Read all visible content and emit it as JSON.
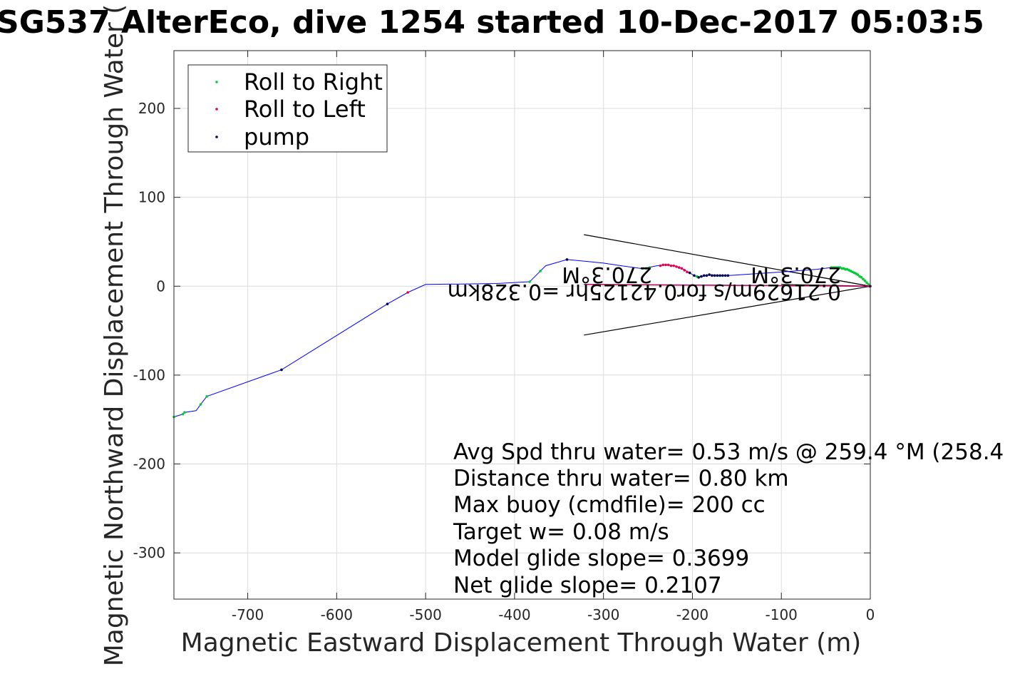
{
  "chart_data": {
    "type": "scatter",
    "title": "SG537 AlterEco, dive 1254 started 10-Dec-2017 05:03:5",
    "xlabel": "Magnetic Eastward Displacement Through Water (m)",
    "ylabel": "Magnetic Northward Displacement Through Water (",
    "xlim": [
      -783,
      0
    ],
    "ylim": [
      -352,
      265
    ],
    "x_ticks": [
      -700,
      -600,
      -500,
      -400,
      -300,
      -200,
      -100,
      0
    ],
    "y_ticks": [
      -300,
      -200,
      -100,
      0,
      100,
      200
    ],
    "grid": true,
    "legend_position": "top-left",
    "legend": [
      "Roll to Right",
      "Roll to Left",
      "pump"
    ],
    "colors": {
      "track": "#0000ff",
      "roll_right": "#00cc33",
      "roll_left": "#e8004c",
      "pump": "#000050",
      "current_lines": "#000000",
      "current_arrow": "#cc0066",
      "grid": "#dcdcdc",
      "axes": "#262626"
    },
    "track": [
      [
        -783,
        -147
      ],
      [
        -773,
        -144
      ],
      [
        -771,
        -142
      ],
      [
        -758,
        -140
      ],
      [
        -753,
        -133
      ],
      [
        -746,
        -124
      ],
      [
        -662,
        -94
      ],
      [
        -543,
        -20
      ],
      [
        -520,
        -7
      ],
      [
        -500,
        2
      ],
      [
        -420,
        3
      ],
      [
        -383,
        5
      ],
      [
        -371,
        17
      ],
      [
        -365,
        23
      ],
      [
        -341,
        30
      ],
      [
        -320,
        28
      ],
      [
        -300,
        26
      ],
      [
        -280,
        23
      ],
      [
        -258,
        20
      ],
      [
        -250,
        21
      ],
      [
        -240,
        23
      ],
      [
        -230,
        24
      ],
      [
        -220,
        23
      ],
      [
        -212,
        20
      ],
      [
        -205,
        16
      ],
      [
        -198,
        12
      ],
      [
        -193,
        10
      ],
      [
        -188,
        11
      ],
      [
        -180,
        13
      ],
      [
        -170,
        12
      ],
      [
        -160,
        12
      ],
      [
        -100,
        16
      ],
      [
        -60,
        19
      ],
      [
        -44,
        21
      ],
      [
        -35,
        21
      ],
      [
        -25,
        19
      ],
      [
        -15,
        14
      ],
      [
        -8,
        8
      ],
      [
        0,
        0
      ]
    ],
    "roll_right": [
      [
        -783,
        -147
      ],
      [
        -773,
        -144
      ],
      [
        -771,
        -142
      ],
      [
        -753,
        -133
      ],
      [
        -746,
        -124
      ],
      [
        -383,
        5
      ],
      [
        -371,
        17
      ],
      [
        -256,
        20
      ],
      [
        -252,
        20
      ],
      [
        -248,
        21
      ],
      [
        -195,
        11
      ],
      [
        -44,
        21
      ],
      [
        -42,
        21
      ],
      [
        -40,
        21
      ],
      [
        -38,
        21
      ],
      [
        -36,
        21
      ],
      [
        -34,
        21
      ],
      [
        -32,
        20
      ],
      [
        -30,
        20
      ],
      [
        -28,
        19
      ],
      [
        -26,
        19
      ],
      [
        -24,
        18
      ],
      [
        -22,
        17
      ],
      [
        -20,
        16
      ],
      [
        -18,
        15
      ],
      [
        -16,
        14
      ],
      [
        -14,
        13
      ],
      [
        -12,
        11
      ],
      [
        -10,
        10
      ],
      [
        -8,
        8
      ],
      [
        -6,
        6
      ],
      [
        -4,
        4
      ],
      [
        -2,
        2
      ]
    ],
    "roll_left": [
      [
        -520,
        -7
      ],
      [
        -341,
        30
      ],
      [
        -236,
        23
      ],
      [
        -233,
        24
      ],
      [
        -230,
        24
      ],
      [
        -227,
        24
      ],
      [
        -224,
        23
      ],
      [
        -221,
        23
      ],
      [
        -218,
        22
      ],
      [
        -215,
        21
      ],
      [
        -212,
        20
      ],
      [
        -209,
        18
      ],
      [
        -206,
        16
      ],
      [
        -1,
        0
      ]
    ],
    "pump": [
      [
        -662,
        -94
      ],
      [
        -543,
        -20
      ],
      [
        -341,
        30
      ],
      [
        -203,
        15
      ],
      [
        -198,
        12
      ],
      [
        -193,
        10
      ],
      [
        -190,
        11
      ],
      [
        -187,
        12
      ],
      [
        -184,
        12
      ],
      [
        -181,
        13
      ],
      [
        -178,
        12
      ],
      [
        -175,
        12
      ],
      [
        -172,
        12
      ],
      [
        -169,
        12
      ],
      [
        -166,
        12
      ],
      [
        -163,
        12
      ],
      [
        -160,
        12
      ],
      [
        0,
        0
      ]
    ],
    "current_lines": [
      [
        [
          -322,
          58
        ],
        [
          0,
          0
        ]
      ],
      [
        [
          -322,
          -55
        ],
        [
          0,
          0
        ]
      ],
      [
        [
          -322,
          2
        ],
        [
          0,
          0
        ]
      ],
      [
        [
          -100,
          18
        ],
        [
          0,
          0
        ]
      ],
      [
        [
          -100,
          2
        ],
        [
          0,
          0
        ]
      ]
    ],
    "current_arrow": [
      [
        -320,
        2
      ],
      [
        0,
        0
      ]
    ],
    "annotations": [
      "0.21629m/s for0.42125hr =0.328km",
      "270.3°M",
      "270.3°M"
    ],
    "stats": [
      "Avg Spd thru water=  0.53 m/s @ 259.4 °M (258.4",
      "Distance thru water=  0.80 km",
      "Max buoy (cmdfile)= 200 cc",
      "Target w= 0.08 m/s",
      "Model glide slope= 0.3699",
      "Net glide slope= 0.2107"
    ]
  }
}
